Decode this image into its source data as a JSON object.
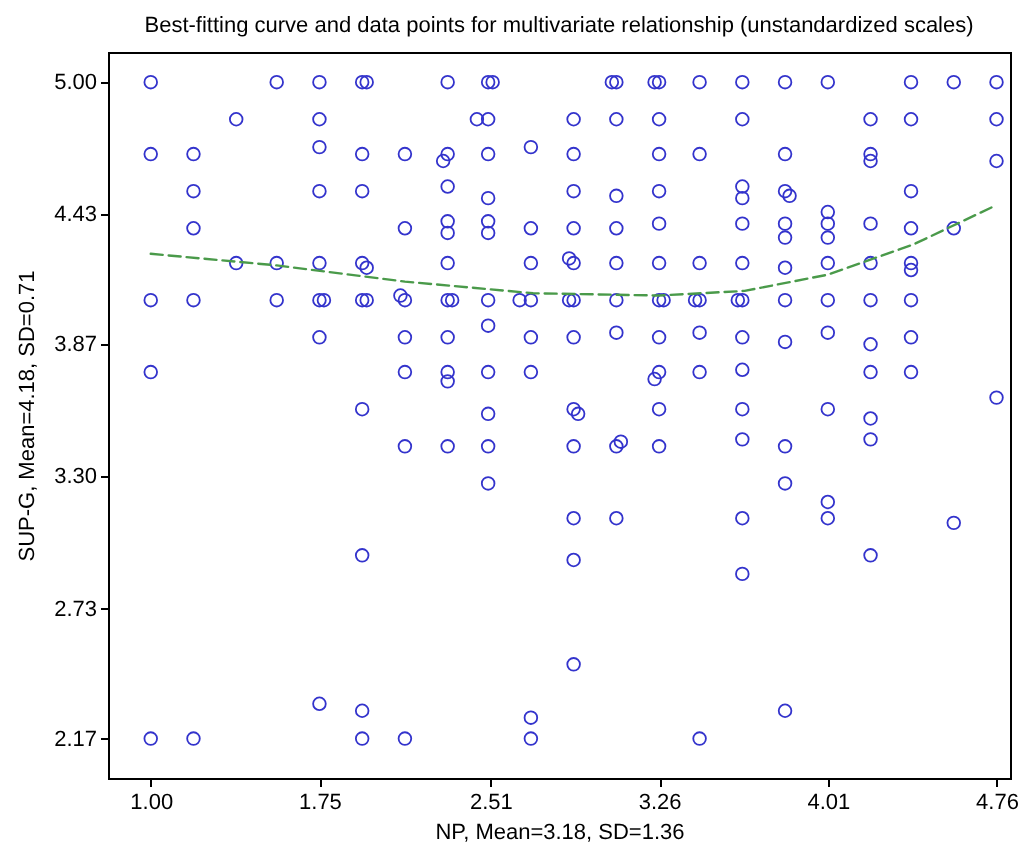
{
  "chart_data": {
    "type": "scatter",
    "title": "Best-fitting curve and data points for multivariate relationship (unstandardized scales)",
    "xlabel": "NP, Mean=3.18, SD=1.36",
    "ylabel": "SUP-G, Mean=4.18, SD=0.71",
    "xlim": [
      0.81,
      4.82
    ],
    "ylim": [
      2.0,
      5.13
    ],
    "xticks": [
      {
        "value": 1,
        "label": "1.00"
      },
      1.75,
      2.51,
      3.26,
      4.01,
      4.76
    ],
    "yticks": [
      {
        "value": 2.17,
        "label": "2.17"
      },
      2.73,
      {
        "value": 3.3,
        "label": "3.30"
      },
      3.87,
      4.43,
      {
        "value": 5,
        "label": "5.00"
      }
    ],
    "series": [
      {
        "marker": "circle",
        "color": "#3333cc",
        "x": [
          1,
          1,
          1,
          1,
          1,
          1.19,
          1.19,
          1.19,
          1.19,
          1.19,
          1.38,
          1.38,
          1.56,
          1.56,
          1.56,
          1.75,
          1.75,
          1.75,
          1.75,
          1.75,
          1.75,
          1.75,
          1.75,
          1.77,
          1.94,
          1.94,
          1.94,
          1.94,
          1.94,
          1.94,
          1.94,
          1.94,
          1.94,
          1.96,
          1.96,
          1.96,
          2.13,
          2.13,
          2.13,
          2.13,
          2.13,
          2.13,
          2.13,
          2.11,
          2.32,
          2.32,
          2.32,
          2.32,
          2.32,
          2.32,
          2.32,
          2.32,
          2.32,
          2.32,
          2.32,
          2.3,
          2.34,
          2.5,
          2.5,
          2.5,
          2.5,
          2.5,
          2.5,
          2.5,
          2.5,
          2.5,
          2.5,
          2.5,
          2.5,
          2.45,
          2.52,
          2.69,
          2.69,
          2.69,
          2.69,
          2.69,
          2.69,
          2.69,
          2.69,
          2.64,
          2.88,
          2.88,
          2.88,
          2.88,
          2.88,
          2.88,
          2.88,
          2.88,
          2.88,
          2.88,
          2.88,
          2.88,
          2.86,
          2.86,
          2.9,
          3.07,
          3.07,
          3.07,
          3.07,
          3.07,
          3.07,
          3.07,
          3.07,
          3.07,
          3.05,
          3.09,
          3.26,
          3.26,
          3.26,
          3.26,
          3.26,
          3.26,
          3.26,
          3.26,
          3.26,
          3.26,
          3.26,
          3.24,
          3.28,
          3.24,
          3.44,
          3.44,
          3.44,
          3.44,
          3.44,
          3.44,
          3.44,
          3.42,
          3.63,
          3.63,
          3.63,
          3.63,
          3.63,
          3.63,
          3.63,
          3.63,
          3.63,
          3.63,
          3.63,
          3.63,
          3.63,
          3.61,
          3.82,
          3.82,
          3.82,
          3.82,
          3.82,
          3.82,
          3.82,
          3.82,
          3.82,
          3.82,
          3.82,
          3.84,
          4.01,
          4.01,
          4.01,
          4.01,
          4.01,
          4.01,
          4.01,
          4.01,
          4.01,
          4.01,
          4.2,
          4.2,
          4.2,
          4.2,
          4.2,
          4.2,
          4.2,
          4.2,
          4.2,
          4.2,
          4.2,
          4.38,
          4.38,
          4.38,
          4.38,
          4.38,
          4.38,
          4.38,
          4.38,
          4.38,
          4.57,
          4.57,
          4.57,
          4.76,
          4.76,
          4.76,
          4.76
        ],
        "values": [
          5,
          4.69,
          4.06,
          3.75,
          2.17,
          4.69,
          4.53,
          4.37,
          4.06,
          2.17,
          4.84,
          4.22,
          5,
          4.22,
          4.06,
          5,
          4.84,
          4.72,
          4.53,
          4.22,
          4.06,
          3.9,
          2.32,
          4.06,
          5,
          4.69,
          4.53,
          4.22,
          4.06,
          3.59,
          2.96,
          2.29,
          2.17,
          5,
          4.06,
          4.2,
          4.69,
          4.37,
          4.06,
          3.9,
          3.75,
          3.43,
          2.17,
          4.08,
          5,
          4.69,
          4.55,
          4.4,
          4.35,
          4.22,
          4.06,
          3.9,
          3.75,
          3.71,
          3.43,
          4.66,
          4.06,
          5,
          4.84,
          4.69,
          4.5,
          4.4,
          4.35,
          4.06,
          3.95,
          3.75,
          3.57,
          3.43,
          3.27,
          4.84,
          5,
          4.72,
          4.37,
          4.22,
          4.06,
          3.9,
          3.75,
          2.26,
          2.17,
          4.06,
          4.84,
          4.69,
          4.53,
          4.37,
          4.22,
          4.06,
          3.9,
          3.59,
          3.43,
          3.12,
          2.94,
          2.49,
          4.24,
          4.06,
          3.57,
          5,
          4.84,
          4.51,
          4.37,
          4.22,
          4.06,
          3.92,
          3.43,
          3.12,
          5,
          3.45,
          5,
          4.84,
          4.69,
          4.53,
          4.39,
          4.22,
          4.06,
          3.9,
          3.75,
          3.59,
          3.43,
          5,
          4.06,
          3.72,
          5,
          4.69,
          4.22,
          4.06,
          3.92,
          3.75,
          2.17,
          4.06,
          5,
          4.84,
          4.55,
          4.5,
          4.39,
          4.22,
          4.06,
          3.9,
          3.76,
          3.59,
          3.46,
          3.12,
          2.88,
          4.06,
          5,
          4.69,
          4.53,
          4.39,
          4.33,
          4.2,
          4.06,
          3.88,
          3.43,
          3.27,
          2.29,
          4.51,
          5,
          4.44,
          4.39,
          4.33,
          4.22,
          4.06,
          3.92,
          3.59,
          3.19,
          3.12,
          4.84,
          4.69,
          4.66,
          4.39,
          4.22,
          4.06,
          3.87,
          3.75,
          3.55,
          3.46,
          2.96,
          5,
          4.84,
          4.53,
          4.37,
          4.22,
          4.19,
          4.06,
          3.9,
          3.75,
          5,
          4.37,
          3.1,
          5,
          4.84,
          4.66,
          3.64
        ]
      },
      {
        "type": "line",
        "color": "#4a9a4a",
        "line_style": "dashed",
        "x": [
          1,
          1.56,
          2.13,
          2.7,
          3.26,
          3.64,
          4.01,
          4.39,
          4.76
        ],
        "values": [
          4.26,
          4.21,
          4.14,
          4.09,
          4.08,
          4.1,
          4.17,
          4.3,
          4.47
        ]
      }
    ]
  }
}
